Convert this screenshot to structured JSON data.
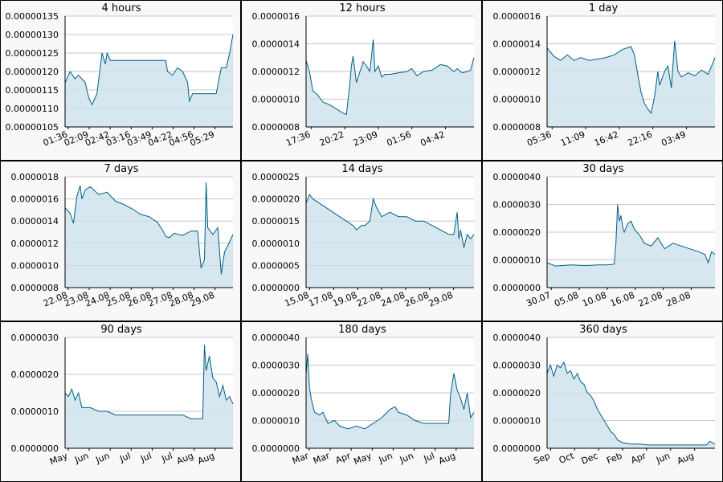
{
  "colors": {
    "line": "#005f87",
    "fill": "#d6e7ef",
    "grid": "#c8c8c8",
    "panel_bg": "#f8f8f8",
    "plot_bg": "#ffffff",
    "border": "#000000"
  },
  "chart_data": [
    {
      "type": "area",
      "title": "4 hours",
      "yticks": [
        "0.00000105",
        "0.00000110",
        "0.00000115",
        "0.00000120",
        "0.00000125",
        "0.00000130",
        "0.00000135"
      ],
      "ylim": [
        1.05e-06,
        1.35e-06
      ],
      "xticks": [
        "01:36",
        "02:09",
        "02:42",
        "03:16",
        "03:49",
        "04:22",
        "04:56",
        "05:29"
      ],
      "x": [
        0,
        0.03,
        0.06,
        0.08,
        0.12,
        0.14,
        0.16,
        0.19,
        0.22,
        0.24,
        0.25,
        0.27,
        0.3,
        0.33,
        0.36,
        0.4,
        0.45,
        0.5,
        0.55,
        0.6,
        0.61,
        0.64,
        0.67,
        0.7,
        0.73,
        0.74,
        0.76,
        0.78,
        0.82,
        0.86,
        0.9,
        0.93,
        0.94,
        0.96,
        0.98,
        1
      ],
      "values": [
        1.17e-06,
        1.2e-06,
        1.18e-06,
        1.19e-06,
        1.17e-06,
        1.13e-06,
        1.11e-06,
        1.14e-06,
        1.25e-06,
        1.22e-06,
        1.25e-06,
        1.23e-06,
        1.23e-06,
        1.23e-06,
        1.23e-06,
        1.23e-06,
        1.23e-06,
        1.23e-06,
        1.23e-06,
        1.23e-06,
        1.2e-06,
        1.19e-06,
        1.21e-06,
        1.2e-06,
        1.17e-06,
        1.12e-06,
        1.14e-06,
        1.14e-06,
        1.14e-06,
        1.14e-06,
        1.14e-06,
        1.21e-06,
        1.21e-06,
        1.21e-06,
        1.25e-06,
        1.3e-06
      ]
    },
    {
      "type": "area",
      "title": "12 hours",
      "yticks": [
        "0.0000008",
        "0.0000010",
        "0.0000012",
        "0.0000014",
        "0.0000016"
      ],
      "ylim": [
        8e-07,
        1.6e-06
      ],
      "xticks": [
        "17:36",
        "20:22",
        "23:09",
        "01:56",
        "04:42"
      ],
      "x": [
        0,
        0.02,
        0.04,
        0.07,
        0.1,
        0.14,
        0.18,
        0.22,
        0.24,
        0.26,
        0.27,
        0.28,
        0.3,
        0.34,
        0.36,
        0.38,
        0.4,
        0.41,
        0.43,
        0.45,
        0.47,
        0.5,
        0.55,
        0.6,
        0.63,
        0.66,
        0.7,
        0.75,
        0.8,
        0.84,
        0.88,
        0.9,
        0.93,
        0.96,
        0.98,
        1
      ],
      "values": [
        1.28e-06,
        1.2e-06,
        1.06e-06,
        1.03e-06,
        9.8e-07,
        9.6e-07,
        9.3e-07,
        9e-07,
        8.9e-07,
        1.1e-06,
        1.24e-06,
        1.31e-06,
        1.12e-06,
        1.27e-06,
        1.24e-06,
        1.2e-06,
        1.43e-06,
        1.2e-06,
        1.24e-06,
        1.16e-06,
        1.18e-06,
        1.18e-06,
        1.19e-06,
        1.2e-06,
        1.22e-06,
        1.17e-06,
        1.2e-06,
        1.21e-06,
        1.25e-06,
        1.24e-06,
        1.2e-06,
        1.22e-06,
        1.19e-06,
        1.2e-06,
        1.21e-06,
        1.3e-06
      ]
    },
    {
      "type": "area",
      "title": "1 day",
      "yticks": [
        "0.0000008",
        "0.0000010",
        "0.0000012",
        "0.0000014",
        "0.0000016"
      ],
      "ylim": [
        8e-07,
        1.6e-06
      ],
      "xticks": [
        "05:36",
        "11:09",
        "16:42",
        "22:16",
        "03:49"
      ],
      "x": [
        0,
        0.02,
        0.04,
        0.08,
        0.12,
        0.16,
        0.2,
        0.25,
        0.3,
        0.35,
        0.4,
        0.45,
        0.5,
        0.52,
        0.54,
        0.56,
        0.58,
        0.6,
        0.62,
        0.64,
        0.66,
        0.67,
        0.7,
        0.72,
        0.74,
        0.76,
        0.78,
        0.8,
        0.84,
        0.88,
        0.92,
        0.96,
        1
      ],
      "values": [
        1.37e-06,
        1.34e-06,
        1.31e-06,
        1.28e-06,
        1.32e-06,
        1.28e-06,
        1.3e-06,
        1.28e-06,
        1.29e-06,
        1.3e-06,
        1.32e-06,
        1.36e-06,
        1.38e-06,
        1.32e-06,
        1.18e-06,
        1.05e-06,
        9.7e-07,
        9.3e-07,
        9e-07,
        1.02e-06,
        1.2e-06,
        1.1e-06,
        1.2e-06,
        1.24e-06,
        1.08e-06,
        1.42e-06,
        1.2e-06,
        1.16e-06,
        1.19e-06,
        1.17e-06,
        1.21e-06,
        1.18e-06,
        1.3e-06
      ]
    },
    {
      "type": "area",
      "title": "7 days",
      "yticks": [
        "0.0000008",
        "0.0000010",
        "0.0000012",
        "0.0000014",
        "0.0000016",
        "0.0000018"
      ],
      "ylim": [
        8e-07,
        1.8e-06
      ],
      "xticks": [
        "22.08",
        "23.08",
        "24.08",
        "25.08",
        "26.08",
        "27.08",
        "28.08",
        "29.08"
      ],
      "x": [
        0,
        0.03,
        0.05,
        0.07,
        0.09,
        0.1,
        0.12,
        0.15,
        0.2,
        0.25,
        0.3,
        0.35,
        0.4,
        0.45,
        0.5,
        0.55,
        0.58,
        0.6,
        0.62,
        0.65,
        0.7,
        0.75,
        0.79,
        0.8,
        0.81,
        0.83,
        0.84,
        0.85,
        0.88,
        0.91,
        0.93,
        0.95,
        0.97,
        1
      ],
      "values": [
        1.52e-06,
        1.47e-06,
        1.38e-06,
        1.62e-06,
        1.72e-06,
        1.6e-06,
        1.68e-06,
        1.71e-06,
        1.64e-06,
        1.66e-06,
        1.58e-06,
        1.55e-06,
        1.51e-06,
        1.46e-06,
        1.44e-06,
        1.39e-06,
        1.32e-06,
        1.26e-06,
        1.25e-06,
        1.29e-06,
        1.27e-06,
        1.31e-06,
        1.31e-06,
        1.13e-06,
        9.8e-07,
        1.05e-06,
        1.75e-06,
        1.34e-06,
        1.28e-06,
        1.34e-06,
        9.2e-07,
        1.12e-06,
        1.18e-06,
        1.28e-06
      ]
    },
    {
      "type": "area",
      "title": "14 days",
      "yticks": [
        "0.0000000",
        "0.0000005",
        "0.0000010",
        "0.0000015",
        "0.0000020",
        "0.0000025"
      ],
      "ylim": [
        0.0,
        2.5e-06
      ],
      "xticks": [
        "15.08",
        "17.08",
        "19.08",
        "22.08",
        "24.08",
        "26.08",
        "29.08"
      ],
      "x": [
        0,
        0.02,
        0.04,
        0.08,
        0.12,
        0.16,
        0.2,
        0.24,
        0.28,
        0.3,
        0.33,
        0.35,
        0.38,
        0.4,
        0.42,
        0.45,
        0.5,
        0.55,
        0.6,
        0.65,
        0.7,
        0.75,
        0.8,
        0.85,
        0.88,
        0.9,
        0.91,
        0.92,
        0.94,
        0.96,
        0.98,
        1
      ],
      "values": [
        1.9e-06,
        2.1e-06,
        2e-06,
        1.9e-06,
        1.8e-06,
        1.7e-06,
        1.6e-06,
        1.5e-06,
        1.4e-06,
        1.3e-06,
        1.4e-06,
        1.4e-06,
        1.5e-06,
        2e-06,
        1.8e-06,
        1.6e-06,
        1.7e-06,
        1.6e-06,
        1.6e-06,
        1.5e-06,
        1.5e-06,
        1.4e-06,
        1.3e-06,
        1.2e-06,
        1.2e-06,
        1.7e-06,
        1.1e-06,
        1.3e-06,
        9e-07,
        1.2e-06,
        1.1e-06,
        1.2e-06
      ]
    },
    {
      "type": "area",
      "title": "30 days",
      "yticks": [
        "0.0000000",
        "0.0000010",
        "0.0000020",
        "0.0000030",
        "0.0000040"
      ],
      "ylim": [
        0.0,
        4e-06
      ],
      "xticks": [
        "30.07",
        "05.08",
        "10.08",
        "16.08",
        "22.08",
        "28.08"
      ],
      "x": [
        0,
        0.02,
        0.05,
        0.1,
        0.15,
        0.2,
        0.25,
        0.3,
        0.35,
        0.38,
        0.4,
        0.41,
        0.42,
        0.43,
        0.44,
        0.45,
        0.46,
        0.48,
        0.5,
        0.52,
        0.55,
        0.58,
        0.62,
        0.66,
        0.7,
        0.75,
        0.8,
        0.85,
        0.9,
        0.94,
        0.96,
        0.98,
        1
      ],
      "values": [
        9e-07,
        8.5e-07,
        7.8e-07,
        8e-07,
        8.2e-07,
        8e-07,
        8e-07,
        8.2e-07,
        8.2e-07,
        8.3e-07,
        8.5e-07,
        1.6e-06,
        3e-06,
        2.4e-06,
        2.6e-06,
        2.2e-06,
        2e-06,
        2.3e-06,
        2.4e-06,
        2.1e-06,
        1.9e-06,
        1.6e-06,
        1.5e-06,
        1.8e-06,
        1.4e-06,
        1.6e-06,
        1.5e-06,
        1.4e-06,
        1.3e-06,
        1.2e-06,
        9e-07,
        1.3e-06,
        1.2e-06
      ]
    },
    {
      "type": "area",
      "title": "90 days",
      "yticks": [
        "0.0000000",
        "0.0000010",
        "0.0000020",
        "0.0000030"
      ],
      "ylim": [
        0.0,
        3e-06
      ],
      "xticks": [
        "May",
        "Jun",
        "Jun",
        "Jul",
        "Jul",
        "Jul",
        "Aug",
        "Aug"
      ],
      "x": [
        0,
        0.02,
        0.04,
        0.06,
        0.08,
        0.1,
        0.15,
        0.2,
        0.25,
        0.3,
        0.35,
        0.4,
        0.45,
        0.5,
        0.55,
        0.6,
        0.65,
        0.7,
        0.75,
        0.8,
        0.82,
        0.83,
        0.84,
        0.86,
        0.88,
        0.9,
        0.92,
        0.94,
        0.96,
        0.98,
        1
      ],
      "values": [
        1.5e-06,
        1.4e-06,
        1.6e-06,
        1.3e-06,
        1.5e-06,
        1.1e-06,
        1.1e-06,
        1e-06,
        1e-06,
        9e-07,
        9e-07,
        9e-07,
        9e-07,
        9e-07,
        9e-07,
        9e-07,
        9e-07,
        9e-07,
        8e-07,
        8e-07,
        8e-07,
        2.8e-06,
        2.1e-06,
        2.5e-06,
        1.9e-06,
        1.8e-06,
        1.4e-06,
        1.7e-06,
        1.3e-06,
        1.4e-06,
        1.2e-06
      ]
    },
    {
      "type": "area",
      "title": "180 days",
      "yticks": [
        "0.0000000",
        "0.0000010",
        "0.0000020",
        "0.0000030",
        "0.0000040"
      ],
      "ylim": [
        0.0,
        4e-06
      ],
      "xticks": [
        "Mar",
        "Mar",
        "Apr",
        "May",
        "Jun",
        "Jun",
        "Jul",
        "Aug"
      ],
      "x": [
        0,
        0.01,
        0.02,
        0.03,
        0.05,
        0.08,
        0.1,
        0.13,
        0.17,
        0.2,
        0.25,
        0.3,
        0.35,
        0.4,
        0.45,
        0.5,
        0.53,
        0.55,
        0.6,
        0.65,
        0.7,
        0.75,
        0.8,
        0.83,
        0.85,
        0.86,
        0.88,
        0.9,
        0.92,
        0.94,
        0.96,
        0.98,
        1
      ],
      "values": [
        2.7e-06,
        3.4e-06,
        2.2e-06,
        1.8e-06,
        1.3e-06,
        1.2e-06,
        1.3e-06,
        9e-07,
        1e-06,
        8e-07,
        7e-07,
        8e-07,
        7e-07,
        9e-07,
        1.1e-06,
        1.4e-06,
        1.5e-06,
        1.3e-06,
        1.2e-06,
        1e-06,
        9e-07,
        9e-07,
        9e-07,
        9e-07,
        9e-07,
        1.9e-06,
        2.7e-06,
        2.1e-06,
        1.8e-06,
        1.4e-06,
        2e-06,
        1.1e-06,
        1.3e-06
      ]
    },
    {
      "type": "area",
      "title": "360 days",
      "yticks": [
        "0.0000000",
        "0.0000010",
        "0.0000020",
        "0.0000030",
        "0.0000040"
      ],
      "ylim": [
        0.0,
        4e-06
      ],
      "xticks": [
        "Sep",
        "Oct",
        "Dec",
        "Feb",
        "Apr",
        "Jun",
        "Aug"
      ],
      "x": [
        0,
        0.02,
        0.04,
        0.06,
        0.08,
        0.1,
        0.12,
        0.14,
        0.16,
        0.18,
        0.2,
        0.22,
        0.24,
        0.26,
        0.28,
        0.3,
        0.32,
        0.34,
        0.36,
        0.38,
        0.4,
        0.42,
        0.45,
        0.5,
        0.55,
        0.6,
        0.7,
        0.8,
        0.9,
        0.95,
        0.97,
        1
      ],
      "values": [
        2.7e-06,
        3e-06,
        2.6e-06,
        3e-06,
        2.9e-06,
        3.1e-06,
        2.7e-06,
        2.8e-06,
        2.5e-06,
        2.7e-06,
        2.4e-06,
        2.3e-06,
        2e-06,
        1.9e-06,
        1.7e-06,
        1.4e-06,
        1.2e-06,
        1e-06,
        8e-07,
        6e-07,
        5e-07,
        3e-07,
        2e-07,
        1.5e-07,
        1.5e-07,
        1.2e-07,
        1.2e-07,
        1.2e-07,
        1.2e-07,
        1.2e-07,
        2.5e-07,
        1.5e-07
      ]
    }
  ]
}
